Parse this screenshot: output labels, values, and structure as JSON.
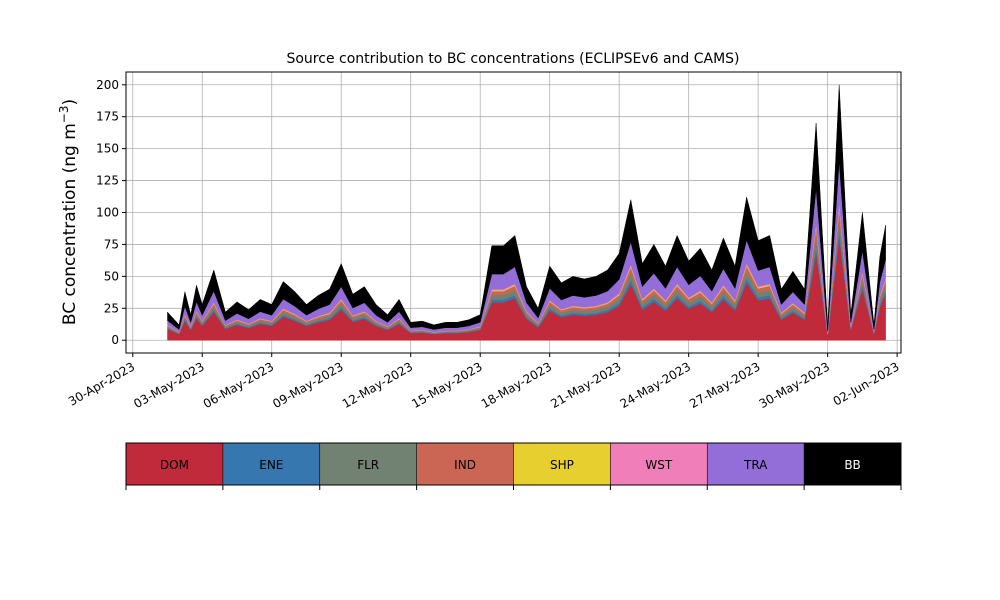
{
  "chart_data": {
    "type": "area",
    "stacked": true,
    "title": "Source contribution to BC concentrations (ECLIPSEv6 and CAMS)",
    "ylabel_main": "BC concentration (ng m",
    "ylabel_sup": "−3",
    "ylabel_close": ")",
    "xlabel": "",
    "ylim": [
      -10,
      210
    ],
    "xlim": [
      "2023-04-29T17:00",
      "2023-06-02T04:00"
    ],
    "yticks": [
      0,
      25,
      50,
      75,
      100,
      125,
      150,
      175,
      200
    ],
    "xticks": [
      "2023-04-30",
      "2023-05-03",
      "2023-05-06",
      "2023-05-09",
      "2023-05-12",
      "2023-05-15",
      "2023-05-18",
      "2023-05-21",
      "2023-05-24",
      "2023-05-27",
      "2023-05-30",
      "2023-06-02"
    ],
    "xtick_labels": [
      "30-Apr-2023",
      "03-May-2023",
      "06-May-2023",
      "09-May-2023",
      "12-May-2023",
      "15-May-2023",
      "18-May-2023",
      "21-May-2023",
      "24-May-2023",
      "27-May-2023",
      "30-May-2023",
      "02-Jun-2023"
    ],
    "grid": true,
    "time_series_total": {
      "x": [
        "2023-05-01T12:00",
        "2023-05-02T00:00",
        "2023-05-02T06:00",
        "2023-05-02T12:00",
        "2023-05-02T18:00",
        "2023-05-03T00:00",
        "2023-05-03T12:00",
        "2023-05-04T00:00",
        "2023-05-04T12:00",
        "2023-05-05T00:00",
        "2023-05-05T12:00",
        "2023-05-06T00:00",
        "2023-05-06T12:00",
        "2023-05-07T00:00",
        "2023-05-07T12:00",
        "2023-05-08T00:00",
        "2023-05-08T12:00",
        "2023-05-09T00:00",
        "2023-05-09T12:00",
        "2023-05-10T00:00",
        "2023-05-10T12:00",
        "2023-05-11T00:00",
        "2023-05-11T12:00",
        "2023-05-12T00:00",
        "2023-05-12T12:00",
        "2023-05-13T00:00",
        "2023-05-13T12:00",
        "2023-05-14T00:00",
        "2023-05-14T12:00",
        "2023-05-15T00:00",
        "2023-05-15T12:00",
        "2023-05-16T00:00",
        "2023-05-16T12:00",
        "2023-05-17T00:00",
        "2023-05-17T12:00",
        "2023-05-18T00:00",
        "2023-05-18T12:00",
        "2023-05-19T00:00",
        "2023-05-19T12:00",
        "2023-05-20T00:00",
        "2023-05-20T12:00",
        "2023-05-21T00:00",
        "2023-05-21T12:00",
        "2023-05-22T00:00",
        "2023-05-22T12:00",
        "2023-05-23T00:00",
        "2023-05-23T12:00",
        "2023-05-24T00:00",
        "2023-05-24T12:00",
        "2023-05-25T00:00",
        "2023-05-25T12:00",
        "2023-05-26T00:00",
        "2023-05-26T12:00",
        "2023-05-27T00:00",
        "2023-05-27T12:00",
        "2023-05-28T00:00",
        "2023-05-28T12:00",
        "2023-05-29T00:00",
        "2023-05-29T12:00",
        "2023-05-30T00:00",
        "2023-05-30T12:00",
        "2023-05-31T00:00",
        "2023-05-31T12:00",
        "2023-06-01T00:00",
        "2023-06-01T06:00",
        "2023-06-01T12:00"
      ],
      "y": [
        22,
        12,
        38,
        20,
        43,
        28,
        55,
        22,
        30,
        24,
        32,
        28,
        46,
        38,
        28,
        35,
        40,
        60,
        36,
        42,
        28,
        20,
        32,
        14,
        15,
        12,
        14,
        14,
        16,
        20,
        74,
        74,
        82,
        42,
        25,
        58,
        45,
        50,
        48,
        50,
        55,
        68,
        110,
        60,
        75,
        58,
        82,
        62,
        72,
        55,
        80,
        58,
        112,
        78,
        82,
        40,
        54,
        40,
        170,
        10,
        200,
        20,
        100,
        12,
        65,
        90
      ]
    },
    "series": [
      {
        "name": "DOM",
        "color": "#c12a3a"
      },
      {
        "name": "ENE",
        "color": "#3777b0"
      },
      {
        "name": "FLR",
        "color": "#718272"
      },
      {
        "name": "IND",
        "color": "#cb6654"
      },
      {
        "name": "SHP",
        "color": "#e6cf2e"
      },
      {
        "name": "WST",
        "color": "#f07eb9"
      },
      {
        "name": "TRA",
        "color": "#936ed9"
      },
      {
        "name": "BB",
        "color": "#000000"
      }
    ],
    "colorbar_labels": [
      "DOM",
      "ENE",
      "FLR",
      "IND",
      "SHP",
      "WST",
      "TRA",
      "BB"
    ]
  }
}
